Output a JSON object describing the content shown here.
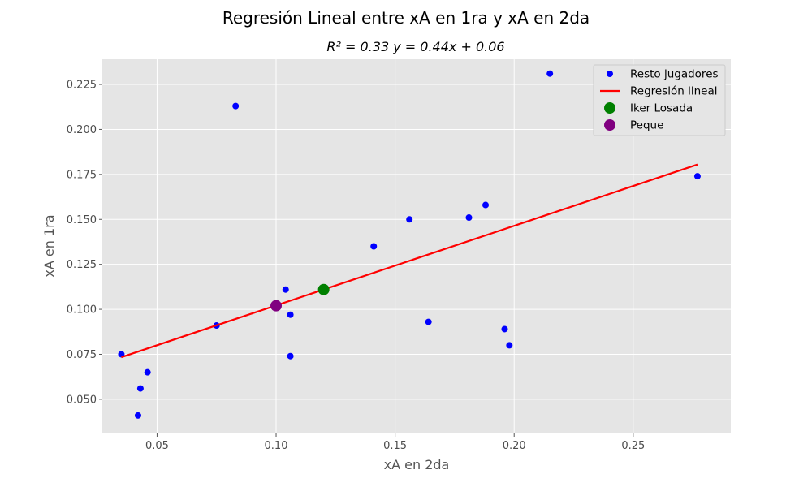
{
  "chart_data": {
    "type": "scatter",
    "title": "Regresión Lineal entre xA en 1ra y xA en 2da",
    "subtitle": "R² = 0.33 y = 0.44x + 0.06",
    "xlabel": "xA en 2da",
    "ylabel": "xA en 1ra",
    "xlim": [
      0.027,
      0.291
    ],
    "ylim": [
      0.031,
      0.239
    ],
    "x_ticks": [
      "0.05",
      "0.10",
      "0.15",
      "0.20",
      "0.25"
    ],
    "y_ticks": [
      "0.050",
      "0.075",
      "0.100",
      "0.125",
      "0.150",
      "0.175",
      "0.200",
      "0.225"
    ],
    "grid": true,
    "legend_position": "top-right",
    "series": [
      {
        "name": "Resto jugadores",
        "kind": "scatter",
        "color": "#0000ff",
        "points": [
          [
            0.035,
            0.075
          ],
          [
            0.042,
            0.041
          ],
          [
            0.043,
            0.056
          ],
          [
            0.046,
            0.065
          ],
          [
            0.075,
            0.091
          ],
          [
            0.083,
            0.213
          ],
          [
            0.104,
            0.111
          ],
          [
            0.106,
            0.097
          ],
          [
            0.106,
            0.074
          ],
          [
            0.141,
            0.135
          ],
          [
            0.156,
            0.15
          ],
          [
            0.164,
            0.093
          ],
          [
            0.181,
            0.151
          ],
          [
            0.188,
            0.158
          ],
          [
            0.196,
            0.089
          ],
          [
            0.198,
            0.08
          ],
          [
            0.215,
            0.231
          ],
          [
            0.277,
            0.174
          ]
        ]
      },
      {
        "name": "Regresión lineal",
        "kind": "line",
        "color": "#ff0000",
        "points": [
          [
            0.035,
            0.0734
          ],
          [
            0.277,
            0.1805
          ]
        ]
      },
      {
        "name": "Iker Losada",
        "kind": "scatter",
        "color": "#008000",
        "points": [
          [
            0.12,
            0.111
          ]
        ]
      },
      {
        "name": "Peque",
        "kind": "scatter",
        "color": "#800080",
        "points": [
          [
            0.1,
            0.102
          ]
        ]
      }
    ]
  }
}
